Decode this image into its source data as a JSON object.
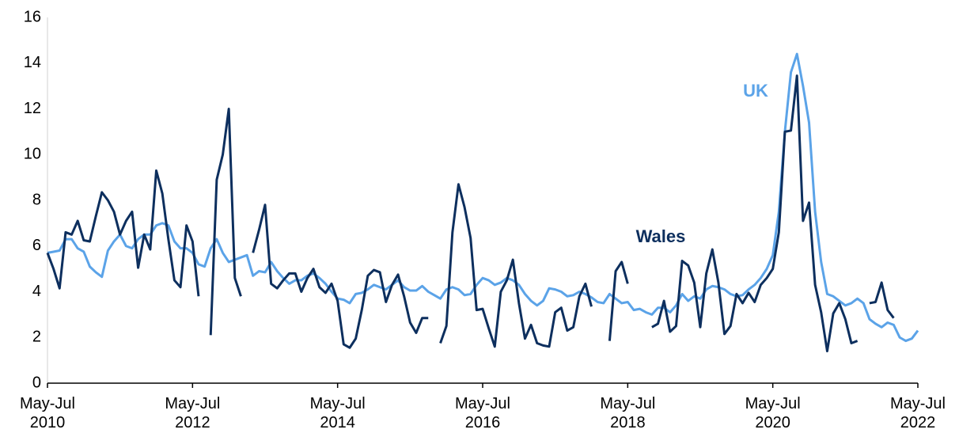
{
  "chart_data": {
    "type": "line",
    "categories": [
      "May-Jul 2010",
      null,
      null,
      null,
      null,
      null,
      null,
      null,
      null,
      null,
      null,
      null,
      null,
      null,
      null,
      null,
      null,
      null,
      null,
      null,
      null,
      null,
      null,
      null,
      "May-Jul 2012",
      null,
      null,
      null,
      null,
      null,
      null,
      null,
      null,
      null,
      null,
      null,
      null,
      null,
      null,
      null,
      null,
      null,
      null,
      null,
      null,
      null,
      null,
      null,
      "May-Jul 2014",
      null,
      null,
      null,
      null,
      null,
      null,
      null,
      null,
      null,
      null,
      null,
      null,
      null,
      null,
      null,
      null,
      null,
      null,
      null,
      null,
      null,
      null,
      null,
      "May-Jul 2016",
      null,
      null,
      null,
      null,
      null,
      null,
      null,
      null,
      null,
      null,
      null,
      null,
      null,
      null,
      null,
      null,
      null,
      null,
      null,
      null,
      null,
      null,
      null,
      "May-Jul 2018",
      null,
      null,
      null,
      null,
      null,
      null,
      null,
      null,
      null,
      null,
      null,
      null,
      null,
      null,
      null,
      null,
      null,
      null,
      null,
      null,
      null,
      null,
      null,
      "May-Jul 2020",
      null,
      null,
      null,
      null,
      null,
      null,
      null,
      null,
      null,
      null,
      null,
      null,
      null,
      null,
      null,
      null,
      null,
      null,
      null,
      null,
      null,
      null,
      null,
      "May-Jul 2022"
    ],
    "series": [
      {
        "name": "UK",
        "color": "#5ba3e8",
        "values": [
          5.7,
          5.75,
          5.8,
          6.3,
          6.3,
          5.9,
          5.75,
          5.1,
          4.85,
          4.65,
          5.8,
          6.2,
          6.5,
          6.0,
          5.9,
          6.3,
          6.5,
          6.5,
          6.9,
          7.0,
          6.9,
          6.2,
          5.9,
          5.9,
          5.7,
          5.2,
          5.1,
          5.9,
          6.3,
          5.7,
          5.3,
          5.4,
          5.5,
          5.6,
          4.7,
          4.9,
          4.85,
          5.3,
          4.9,
          4.6,
          4.35,
          4.5,
          4.5,
          4.7,
          4.8,
          4.6,
          4.35,
          4.0,
          3.7,
          3.65,
          3.5,
          3.9,
          3.95,
          4.1,
          4.3,
          4.2,
          4.1,
          4.3,
          4.5,
          4.2,
          4.05,
          4.05,
          4.25,
          4.0,
          3.85,
          3.7,
          4.1,
          4.2,
          4.1,
          3.85,
          3.9,
          4.3,
          4.6,
          4.5,
          4.3,
          4.4,
          4.6,
          4.5,
          4.3,
          3.9,
          3.6,
          3.4,
          3.6,
          4.15,
          4.1,
          4.0,
          3.8,
          3.85,
          4.0,
          3.9,
          3.75,
          3.55,
          3.5,
          3.9,
          3.7,
          3.5,
          3.55,
          3.2,
          3.25,
          3.1,
          3.0,
          3.3,
          3.3,
          3.1,
          3.4,
          3.9,
          3.6,
          3.8,
          3.7,
          4.1,
          4.25,
          4.2,
          4.1,
          3.9,
          3.8,
          3.85,
          4.1,
          4.3,
          4.6,
          5.0,
          5.6,
          7.5,
          11.0,
          13.6,
          14.4,
          13.0,
          11.4,
          7.5,
          5.3,
          3.9,
          3.8,
          3.6,
          3.4,
          3.5,
          3.7,
          3.5,
          2.8,
          2.6,
          2.45,
          2.65,
          2.55,
          2.0,
          1.85,
          1.95,
          2.3
        ]
      },
      {
        "name": "Wales",
        "color": "#0d2f5e",
        "values": [
          5.7,
          5.0,
          4.15,
          6.6,
          6.5,
          7.1,
          6.25,
          6.2,
          7.3,
          8.35,
          8.0,
          7.5,
          6.5,
          7.1,
          7.5,
          5.05,
          6.5,
          5.85,
          9.3,
          8.3,
          6.3,
          4.5,
          4.2,
          6.9,
          6.2,
          3.8,
          null,
          2.1,
          8.9,
          10.0,
          12.0,
          4.6,
          3.8,
          null,
          5.7,
          6.7,
          7.8,
          4.35,
          4.15,
          4.5,
          4.8,
          4.8,
          4.0,
          4.6,
          5.0,
          4.2,
          3.95,
          4.35,
          3.6,
          1.7,
          1.55,
          1.95,
          3.2,
          4.7,
          4.95,
          4.85,
          3.55,
          4.3,
          4.75,
          3.8,
          2.65,
          2.2,
          2.85,
          2.85,
          null,
          1.75,
          2.5,
          6.6,
          8.7,
          7.7,
          6.35,
          3.2,
          3.25,
          2.4,
          1.6,
          4.0,
          4.5,
          5.4,
          3.5,
          1.95,
          2.55,
          1.75,
          1.65,
          1.6,
          3.1,
          3.3,
          2.3,
          2.45,
          3.8,
          4.35,
          3.35,
          null,
          null,
          1.85,
          4.9,
          5.3,
          4.35,
          null,
          null,
          null,
          2.45,
          2.6,
          3.6,
          2.25,
          2.5,
          5.35,
          5.15,
          4.4,
          2.45,
          4.8,
          5.85,
          4.4,
          2.15,
          2.5,
          3.9,
          3.5,
          3.95,
          3.55,
          4.3,
          4.6,
          5.0,
          6.6,
          11.0,
          11.05,
          13.45,
          7.1,
          7.9,
          4.3,
          3.1,
          1.4,
          3.05,
          3.5,
          2.8,
          1.75,
          1.85,
          null,
          3.5,
          3.55,
          4.4,
          3.2,
          2.85,
          null,
          null,
          null,
          null
        ]
      }
    ],
    "ylim": [
      0,
      16
    ],
    "yticks": [
      0,
      2,
      4,
      6,
      8,
      10,
      12,
      14,
      16
    ],
    "grid": false
  }
}
